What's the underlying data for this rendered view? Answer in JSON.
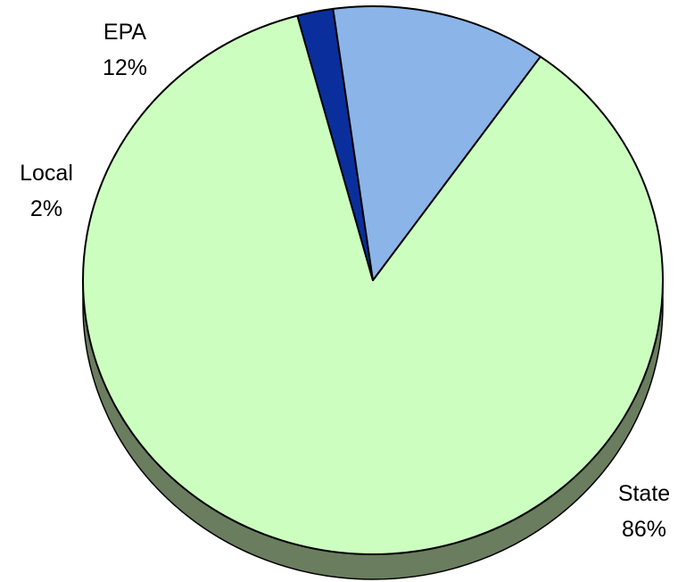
{
  "chart_data": {
    "type": "pie",
    "title": "",
    "slices": [
      {
        "label": "State",
        "percent_label": "86%",
        "value": 86,
        "color": "#ccffbf",
        "side_color": "#6a7d5e"
      },
      {
        "label": "Local",
        "percent_label": "2%",
        "value": 2,
        "color": "#0a2f9c",
        "side_color": "#061f66"
      },
      {
        "label": "EPA",
        "percent_label": "12%",
        "value": 12,
        "color": "#8bb4e8",
        "side_color": "#52739c"
      }
    ],
    "style": "3d-pie",
    "legend": "none",
    "data_labels": "outside"
  }
}
